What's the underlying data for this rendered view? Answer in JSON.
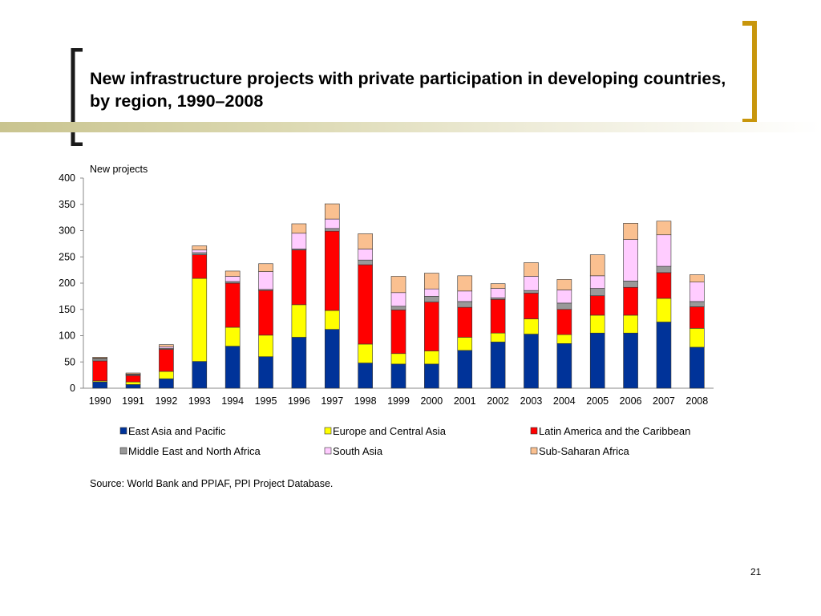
{
  "slide": {
    "title": "New infrastructure projects with private participation in developing countries, by region, 1990–2008",
    "source": "Source: World Bank and PPIAF, PPI Project Database.",
    "page_number": "21"
  },
  "colors": {
    "bracket_left": "#1a1a1a",
    "bracket_right": "#c8960c",
    "title_bar": "#c9c48f"
  },
  "chart_data": {
    "type": "bar",
    "stacked": true,
    "title": "",
    "xlabel": "",
    "ylabel": "New projects",
    "ylim": [
      0,
      400
    ],
    "yticks": [
      0,
      50,
      100,
      150,
      200,
      250,
      300,
      350,
      400
    ],
    "grid": false,
    "legend_position": "bottom",
    "categories": [
      "1990",
      "1991",
      "1992",
      "1993",
      "1994",
      "1995",
      "1996",
      "1997",
      "1998",
      "1999",
      "2000",
      "2001",
      "2002",
      "2003",
      "2004",
      "2005",
      "2006",
      "2007",
      "2008"
    ],
    "series": [
      {
        "name": "East Asia and Pacific",
        "color": "#003399",
        "values": [
          12,
          7,
          18,
          51,
          80,
          60,
          97,
          112,
          48,
          46,
          46,
          72,
          88,
          103,
          85,
          105,
          105,
          126,
          78
        ]
      },
      {
        "name": "Europe and Central Asia",
        "color": "#ffff00",
        "values": [
          2,
          5,
          14,
          158,
          36,
          41,
          62,
          36,
          36,
          20,
          25,
          25,
          17,
          29,
          17,
          34,
          34,
          45,
          36
        ]
      },
      {
        "name": "Latin America and the Caribbean",
        "color": "#ff0000",
        "values": [
          38,
          12,
          42,
          45,
          84,
          85,
          104,
          151,
          151,
          83,
          93,
          57,
          64,
          49,
          48,
          37,
          53,
          49,
          41
        ]
      },
      {
        "name": "Middle East and North Africa",
        "color": "#999999",
        "values": [
          4,
          2,
          2,
          4,
          3,
          2,
          2,
          5,
          9,
          7,
          11,
          11,
          3,
          5,
          12,
          14,
          12,
          12,
          10
        ]
      },
      {
        "name": "South Asia",
        "color": "#ffccff",
        "values": [
          1,
          1,
          3,
          5,
          10,
          34,
          30,
          18,
          21,
          26,
          14,
          20,
          18,
          27,
          25,
          24,
          79,
          60,
          37
        ]
      },
      {
        "name": "Sub-Saharan Africa",
        "color": "#fac090",
        "values": [
          2,
          2,
          4,
          8,
          10,
          15,
          18,
          29,
          29,
          31,
          30,
          29,
          9,
          26,
          20,
          40,
          31,
          26,
          14
        ]
      }
    ]
  }
}
